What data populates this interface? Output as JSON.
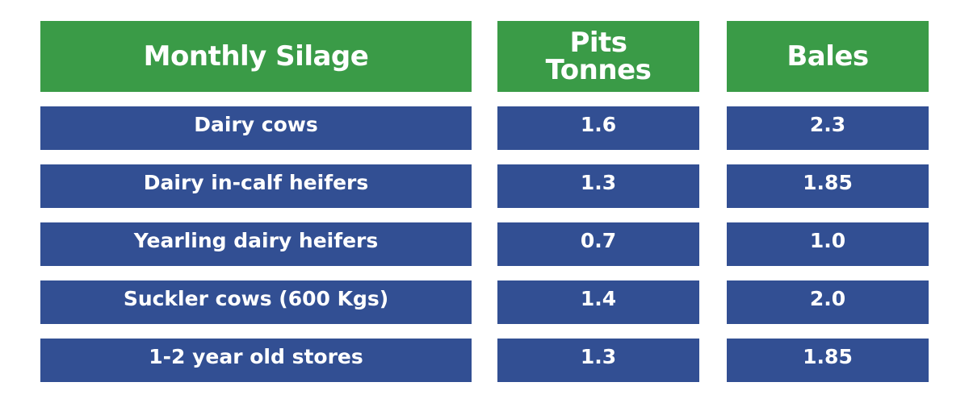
{
  "table": {
    "headers": [
      "Monthly Silage",
      "Pits\nTonnes",
      "Bales"
    ],
    "header_lines": {
      "pits": [
        "Pits",
        "Tonnes"
      ]
    },
    "rows": [
      [
        "Dairy cows",
        "1.6",
        "2.3"
      ],
      [
        "Dairy in-calf heifers",
        "1.3",
        "1.85"
      ],
      [
        "Yearling dairy heifers",
        "0.7",
        "1.0"
      ],
      [
        "Suckler cows (600 Kgs)",
        "1.4",
        "2.0"
      ],
      [
        "1-2 year old stores",
        "1.3",
        "1.85"
      ]
    ]
  },
  "colors": {
    "header_bg": "#3a9b47",
    "row_bg": "#324f93",
    "text": "#ffffff"
  },
  "chart_data": {
    "type": "table",
    "columns": [
      "Monthly Silage",
      "Pits Tonnes",
      "Bales"
    ],
    "rows": [
      {
        "category": "Dairy cows",
        "pits_tonnes": 1.6,
        "bales": 2.3
      },
      {
        "category": "Dairy in-calf heifers",
        "pits_tonnes": 1.3,
        "bales": 1.85
      },
      {
        "category": "Yearling dairy heifers",
        "pits_tonnes": 0.7,
        "bales": 1.0
      },
      {
        "category": "Suckler cows (600 Kgs)",
        "pits_tonnes": 1.4,
        "bales": 2.0
      },
      {
        "category": "1-2 year old stores",
        "pits_tonnes": 1.3,
        "bales": 1.85
      }
    ]
  }
}
